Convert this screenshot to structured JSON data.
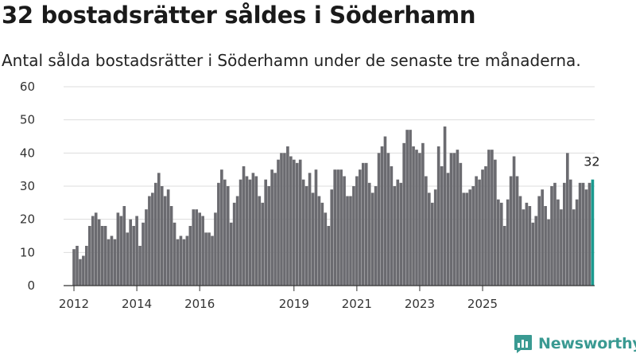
{
  "title": "32 bostadsrätter såldes i Söderhamn",
  "subtitle": "Antal sålda bostadsrätter i Söderhamn under de senaste tre månaderna.",
  "brand": "Newsworthy",
  "colors": {
    "bar": "#6b6b70",
    "highlight": "#1a9a8f",
    "grid": "#dddddd",
    "brand": "#3a9a92"
  },
  "chart_data": {
    "type": "bar",
    "ylim": [
      0,
      60
    ],
    "yticks": [
      "0",
      "10",
      "20",
      "30",
      "40",
      "50",
      "60"
    ],
    "xticks": [
      {
        "label": "2012",
        "index": 0
      },
      {
        "label": "2014",
        "index": 20
      },
      {
        "label": "2016",
        "index": 40
      },
      {
        "label": "2019",
        "index": 70
      },
      {
        "label": "2021",
        "index": 90
      },
      {
        "label": "2023",
        "index": 110
      },
      {
        "label": "2025",
        "index": 130
      }
    ],
    "highlight_label": "32",
    "values": [
      11,
      12,
      8,
      9,
      12,
      18,
      21,
      22,
      20,
      18,
      18,
      14,
      15,
      14,
      22,
      21,
      24,
      16,
      20,
      18,
      21,
      12,
      19,
      23,
      27,
      28,
      31,
      34,
      30,
      27,
      29,
      24,
      19,
      14,
      15,
      14,
      15,
      18,
      23,
      23,
      22,
      21,
      16,
      16,
      15,
      22,
      31,
      35,
      32,
      30,
      19,
      25,
      27,
      32,
      36,
      33,
      32,
      34,
      33,
      27,
      25,
      32,
      30,
      35,
      34,
      38,
      40,
      40,
      42,
      39,
      38,
      37,
      38,
      32,
      30,
      34,
      28,
      35,
      27,
      25,
      22,
      18,
      29,
      35,
      35,
      35,
      33,
      27,
      27,
      30,
      33,
      35,
      37,
      37,
      31,
      28,
      30,
      40,
      42,
      45,
      40,
      36,
      30,
      32,
      31,
      43,
      47,
      47,
      42,
      41,
      40,
      43,
      33,
      28,
      25,
      29,
      42,
      36,
      48,
      34,
      40,
      40,
      41,
      37,
      28,
      28,
      29,
      30,
      33,
      32,
      35,
      36,
      41,
      41,
      38,
      26,
      25,
      18,
      26,
      33,
      39,
      33,
      27,
      23,
      25,
      24,
      19,
      21,
      27,
      29,
      24,
      20,
      30,
      31,
      26,
      23,
      31,
      40,
      32,
      23,
      26,
      31,
      31,
      29,
      31,
      32
    ]
  }
}
